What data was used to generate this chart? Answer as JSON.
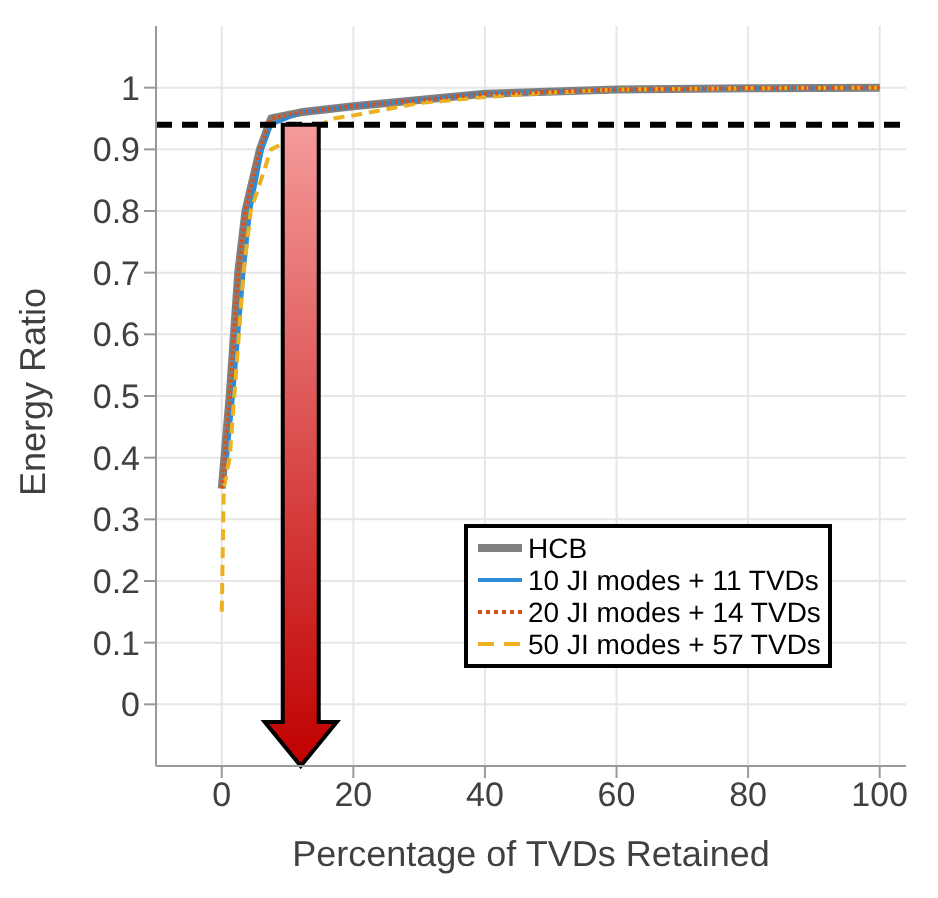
{
  "chart_data": {
    "type": "line",
    "xlabel": "Percentage of TVDs Retained",
    "ylabel": "Energy Ratio",
    "xlim": [
      -10,
      104
    ],
    "xticks": [
      0,
      20,
      40,
      60,
      80,
      100
    ],
    "ylim": [
      -0.1,
      1.1
    ],
    "yticks": [
      0,
      0.1,
      0.2,
      0.3,
      0.4,
      0.5,
      0.6,
      0.7,
      0.8,
      0.9,
      1
    ],
    "grid": true,
    "legend": "bottom right",
    "marker": "none",
    "series": [
      {
        "name": "HCB",
        "color": "#808080",
        "line_style": "solid",
        "x": [
          0,
          1.2,
          2.5,
          3.6,
          5.8,
          7.5,
          12,
          20,
          30,
          40,
          60,
          80,
          100
        ],
        "values": [
          0.35,
          0.5,
          0.7,
          0.8,
          0.9,
          0.95,
          0.96,
          0.97,
          0.98,
          0.99,
          0.997,
          0.999,
          1
        ]
      },
      {
        "name": "10 JI modes + 11 TVDs",
        "color": "#2e8bd6",
        "line_style": "solid",
        "x": [
          0.8,
          1.7,
          3.3,
          4.3,
          6.1,
          7.5,
          12,
          20,
          30,
          40,
          60,
          80,
          100
        ],
        "values": [
          0.4,
          0.5,
          0.7,
          0.8,
          0.9,
          0.94,
          0.96,
          0.97,
          0.98,
          0.99,
          0.997,
          0.999,
          1
        ]
      },
      {
        "name": "20 JI modes + 14 TVDs",
        "color": "#d95319",
        "line_style": "dotted",
        "x": [
          0,
          1.2,
          2.5,
          3.6,
          5.8,
          7.5,
          12,
          20,
          30,
          40,
          60,
          80,
          100
        ],
        "values": [
          0.35,
          0.5,
          0.7,
          0.8,
          0.9,
          0.95,
          0.96,
          0.97,
          0.98,
          0.99,
          0.997,
          0.999,
          1
        ]
      },
      {
        "name": "50 JI modes + 57 TVDs",
        "color": "#edb120",
        "line_style": "dashed",
        "x": [
          0,
          0.3,
          1.2,
          1.9,
          3.3,
          4.4,
          7.5,
          17,
          20,
          30,
          40,
          50,
          60,
          80,
          100
        ],
        "values": [
          0.15,
          0.35,
          0.4,
          0.5,
          0.7,
          0.8,
          0.9,
          0.95,
          0.955,
          0.975,
          0.985,
          0.992,
          0.997,
          0.999,
          1
        ]
      }
    ],
    "ref_lines": [
      {
        "axis": "y",
        "value": 0.94,
        "color": "#000000",
        "line_style": "dashed"
      }
    ]
  }
}
